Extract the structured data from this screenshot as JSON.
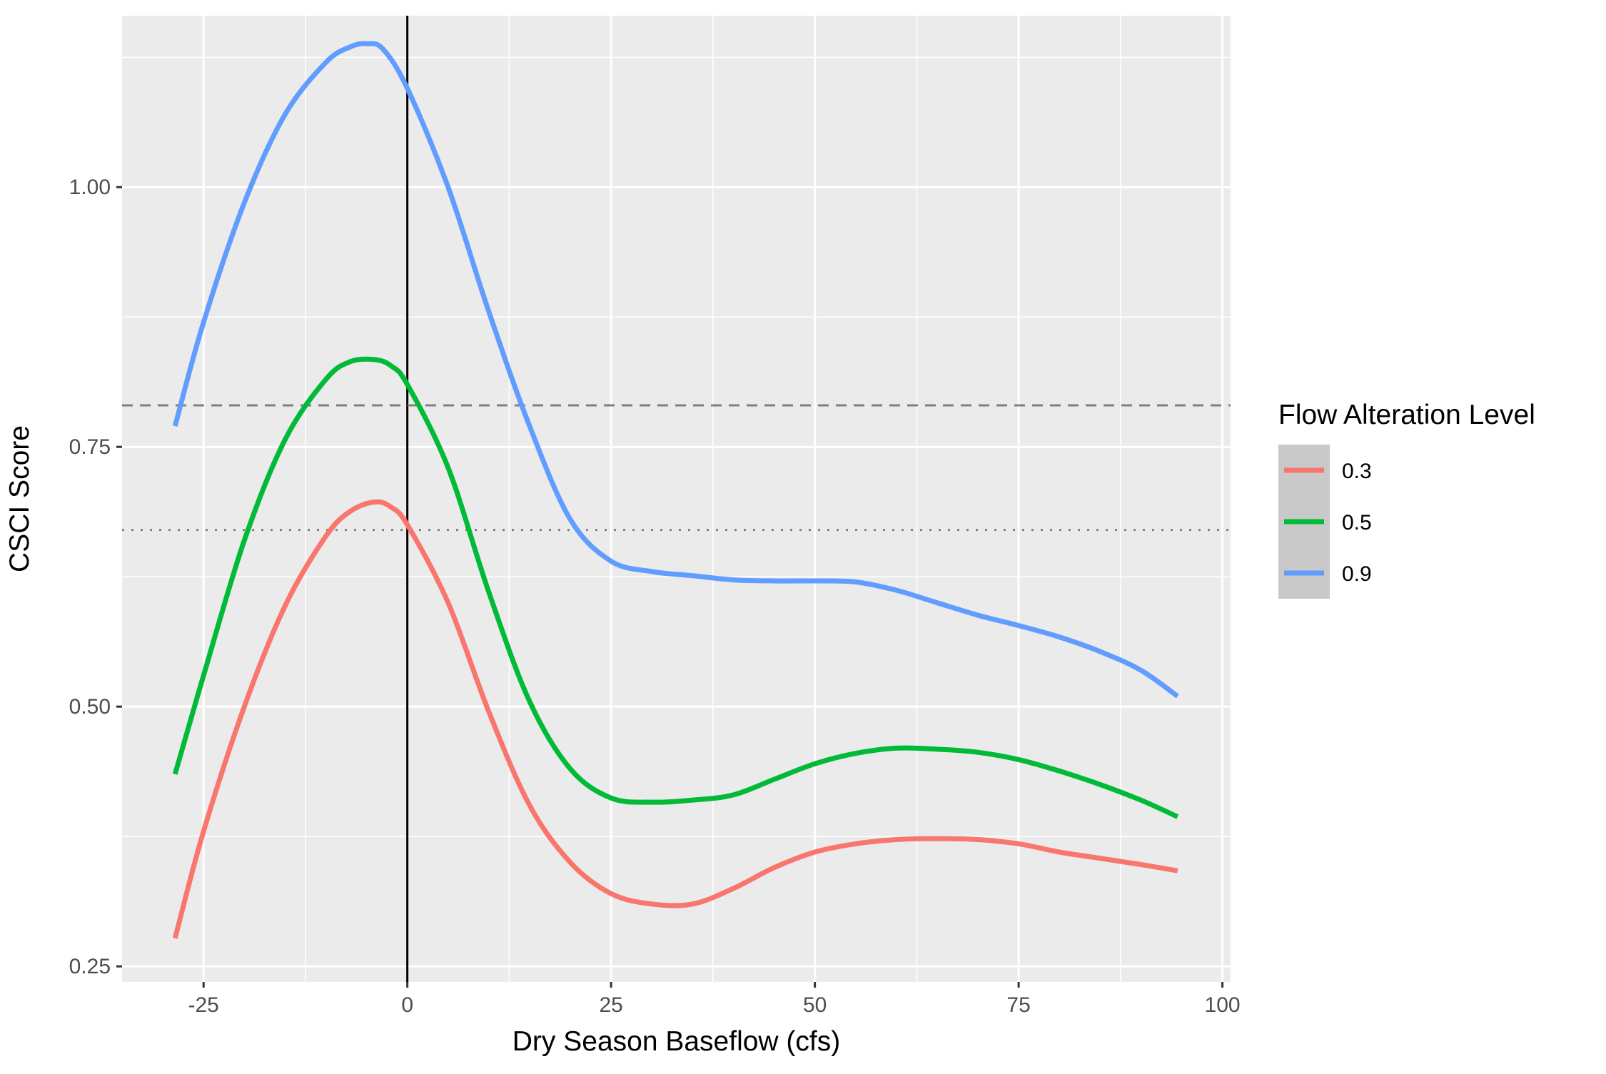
{
  "chart_data": {
    "type": "line",
    "title": "",
    "xlabel": "Dry Season Baseflow (cfs)",
    "ylabel": "CSCI Score",
    "xlim": [
      -35,
      101
    ],
    "ylim": [
      0.235,
      1.165
    ],
    "x_ticks": [
      -25,
      0,
      25,
      50,
      75,
      100
    ],
    "x_tick_labels": [
      "-25",
      "0",
      "25",
      "50",
      "75",
      "100"
    ],
    "x_minor_ticks": [
      -12.5,
      12.5,
      37.5,
      62.5,
      87.5
    ],
    "y_ticks": [
      0.25,
      0.5,
      0.75,
      1.0
    ],
    "y_tick_labels": [
      "0.25",
      "0.50",
      "0.75",
      "1.00"
    ],
    "y_minor_ticks": [
      0.375,
      0.625,
      0.875,
      1.125
    ],
    "grid": true,
    "background": "#ebebeb",
    "reference_lines": [
      {
        "orientation": "vertical",
        "value": 0,
        "style": "solid",
        "color": "#000000"
      },
      {
        "orientation": "horizontal",
        "value": 0.79,
        "style": "dashed",
        "color": "#7f7f7f"
      },
      {
        "orientation": "horizontal",
        "value": 0.67,
        "style": "dotted",
        "color": "#7f7f7f"
      }
    ],
    "legend": {
      "title": "Flow Alteration Level",
      "position": "right"
    },
    "series": [
      {
        "name": "0.3",
        "color": "#f8766d",
        "x": [
          -28.5,
          -25,
          -20,
          -15,
          -10,
          -7,
          -4,
          -2,
          0,
          5,
          10,
          15,
          20,
          25,
          30,
          35,
          40,
          45,
          50,
          55,
          60,
          65,
          70,
          75,
          80,
          85,
          90,
          94.5
        ],
        "y": [
          0.277,
          0.38,
          0.5,
          0.597,
          0.664,
          0.688,
          0.697,
          0.692,
          0.675,
          0.6,
          0.495,
          0.405,
          0.35,
          0.32,
          0.31,
          0.31,
          0.325,
          0.345,
          0.36,
          0.368,
          0.372,
          0.373,
          0.372,
          0.368,
          0.36,
          0.354,
          0.348,
          0.342
        ]
      },
      {
        "name": "0.5",
        "color": "#00ba38",
        "x": [
          -28.5,
          -25,
          -20,
          -15,
          -10,
          -7,
          -4,
          -2,
          0,
          5,
          10,
          15,
          20,
          25,
          30,
          35,
          40,
          45,
          50,
          55,
          60,
          65,
          70,
          75,
          80,
          85,
          90,
          94.5
        ],
        "y": [
          0.435,
          0.53,
          0.66,
          0.757,
          0.815,
          0.832,
          0.834,
          0.828,
          0.81,
          0.73,
          0.61,
          0.505,
          0.44,
          0.412,
          0.408,
          0.41,
          0.415,
          0.43,
          0.445,
          0.455,
          0.46,
          0.459,
          0.456,
          0.449,
          0.438,
          0.425,
          0.41,
          0.394
        ]
      },
      {
        "name": "0.9",
        "color": "#619cff",
        "x": [
          -28.5,
          -25,
          -20,
          -15,
          -10,
          -7,
          -5,
          -3,
          0,
          5,
          10,
          15,
          20,
          25,
          30,
          35,
          40,
          45,
          50,
          55,
          60,
          65,
          70,
          75,
          80,
          85,
          90,
          94.5
        ],
        "y": [
          0.77,
          0.87,
          0.985,
          1.07,
          1.12,
          1.135,
          1.138,
          1.133,
          1.095,
          1.0,
          0.88,
          0.77,
          0.68,
          0.64,
          0.63,
          0.626,
          0.622,
          0.621,
          0.621,
          0.62,
          0.612,
          0.6,
          0.588,
          0.578,
          0.567,
          0.553,
          0.535,
          0.51
        ]
      }
    ]
  }
}
